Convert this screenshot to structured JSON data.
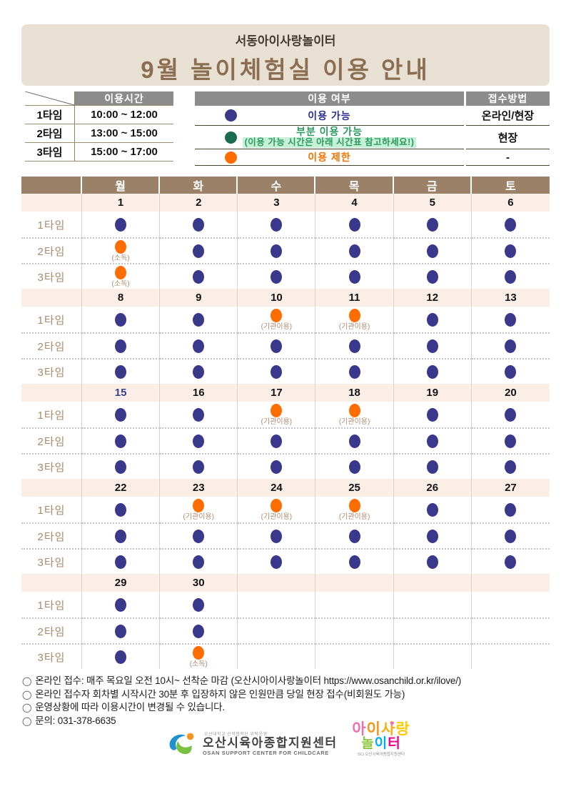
{
  "header": {
    "subtitle": "서동아이사랑놀이터",
    "title": "9월 놀이체험실 이용 안내"
  },
  "time_table": {
    "header": "이용시간",
    "rows": [
      {
        "label": "1타임",
        "time": "10:00 ~ 12:00"
      },
      {
        "label": "2타임",
        "time": "13:00 ~ 15:00"
      },
      {
        "label": "3타임",
        "time": "15:00 ~ 17:00"
      }
    ]
  },
  "legend_table": {
    "col1_header": "이용 여부",
    "col2_header": "접수방법",
    "rows": [
      {
        "dot": "blue",
        "label": "이용 가능",
        "method": "온라인/현장"
      },
      {
        "dot": "green",
        "label": "부분 이용 가능",
        "note": "(이용 가능 시간은 아래 시간표 참고하세요!)",
        "method": "현장"
      },
      {
        "dot": "orange",
        "label": "이용 제한",
        "method": "-"
      }
    ]
  },
  "calendar": {
    "day_headers": [
      "월",
      "화",
      "수",
      "목",
      "금",
      "토"
    ],
    "time_labels": [
      "1타임",
      "2타임",
      "3타임"
    ],
    "weeks": [
      {
        "dates": [
          "1",
          "2",
          "3",
          "4",
          "5",
          "6"
        ],
        "navy_dates": [],
        "rows": [
          [
            "blue",
            "blue",
            "blue",
            "blue",
            "blue",
            "blue"
          ],
          [
            {
              "dot": "orange",
              "note": "(소독)"
            },
            "blue",
            "blue",
            "blue",
            "blue",
            "blue"
          ],
          [
            {
              "dot": "orange",
              "note": "(소독)"
            },
            "blue",
            "blue",
            "blue",
            "blue",
            "blue"
          ]
        ]
      },
      {
        "dates": [
          "8",
          "9",
          "10",
          "11",
          "12",
          "13"
        ],
        "navy_dates": [],
        "rows": [
          [
            "blue",
            "blue",
            {
              "dot": "orange",
              "note": "(기관이용)"
            },
            {
              "dot": "orange",
              "note": "(기관이용)"
            },
            "blue",
            "blue"
          ],
          [
            "blue",
            "blue",
            "blue",
            "blue",
            "blue",
            "blue"
          ],
          [
            "blue",
            "blue",
            "blue",
            "blue",
            "blue",
            "blue"
          ]
        ]
      },
      {
        "dates": [
          "15",
          "16",
          "17",
          "18",
          "19",
          "20"
        ],
        "navy_dates": [
          "15"
        ],
        "rows": [
          [
            "blue",
            "blue",
            {
              "dot": "orange",
              "note": "(기관이용)"
            },
            {
              "dot": "orange",
              "note": "(기관이용)"
            },
            "blue",
            "blue"
          ],
          [
            "blue",
            "blue",
            "blue",
            "blue",
            "blue",
            "blue"
          ],
          [
            "blue",
            "blue",
            "blue",
            "blue",
            "blue",
            "blue"
          ]
        ]
      },
      {
        "dates": [
          "22",
          "23",
          "24",
          "25",
          "26",
          "27"
        ],
        "navy_dates": [],
        "rows": [
          [
            "blue",
            {
              "dot": "orange",
              "note": "(기관이용)"
            },
            {
              "dot": "orange",
              "note": "(기관이용)"
            },
            {
              "dot": "orange",
              "note": "(기관이용)"
            },
            "blue",
            "blue"
          ],
          [
            "blue",
            "blue",
            "blue",
            "blue",
            "blue",
            "blue"
          ],
          [
            "blue",
            "blue",
            "blue",
            "blue",
            "blue",
            "blue"
          ]
        ]
      },
      {
        "dates": [
          "29",
          "30",
          "",
          "",
          "",
          ""
        ],
        "navy_dates": [],
        "rows": [
          [
            "blue",
            "blue",
            null,
            null,
            null,
            null
          ],
          [
            "blue",
            "blue",
            null,
            null,
            null,
            null
          ],
          [
            "blue",
            {
              "dot": "orange",
              "note": "(소독)"
            },
            null,
            null,
            null,
            null
          ]
        ]
      }
    ]
  },
  "notes": {
    "bullet": "◯",
    "lines": [
      "온라인 접수: 매주 목요일 오전 10시~ 선착순 마감 (오산시아이사랑놀이터  https://www.osanchild.or.kr/ilove/)",
      "온라인 접수자 회차별 시작시간 30분 후 입장하지 않은 인원만큼 당일 현장 접수(비회원도 가능)",
      "운영상황에 따라 이용시간이 변경될 수 있습니다.",
      "문의: 031-378-6635"
    ]
  },
  "footer": {
    "left_logo": {
      "mark": "SCi",
      "top_small": "오산대학교 산학협력단 위탁운영",
      "name": "오산시육아종합지원센터",
      "name_en": "OSAN SUPPORT CENTER FOR CHILDCARE"
    },
    "right_logo": {
      "line1": [
        {
          "ch": "아",
          "color": "#f06eaa"
        },
        {
          "ch": "이",
          "color": "#f7941d"
        },
        {
          "ch": "사",
          "color": "#fbaf17"
        },
        {
          "ch": "랑",
          "color": "#ffcb05"
        }
      ],
      "heart": "♥",
      "heart_color": "#f06eaa",
      "line2": [
        {
          "ch": "놀",
          "color": "#8dc63f"
        },
        {
          "ch": "이",
          "color": "#00aeef"
        },
        {
          "ch": "터",
          "color": "#ec008c"
        }
      ],
      "sub": "SCi 오산시육아종합지원센터"
    }
  },
  "colors": {
    "navy_dot": "#39388a",
    "orange_dot": "#ff6c00",
    "green_dot": "#1b6d4f",
    "calendar_header_brown": "#9a8168",
    "date_row_bg": "#fbeee7",
    "header_box_bg": "#e8e1d3",
    "title_brown": "#8b6e51",
    "table_header_gray": "#8c8c8c",
    "mint_highlight": "#c7f0d8",
    "tan_label": "#a98a6b"
  }
}
